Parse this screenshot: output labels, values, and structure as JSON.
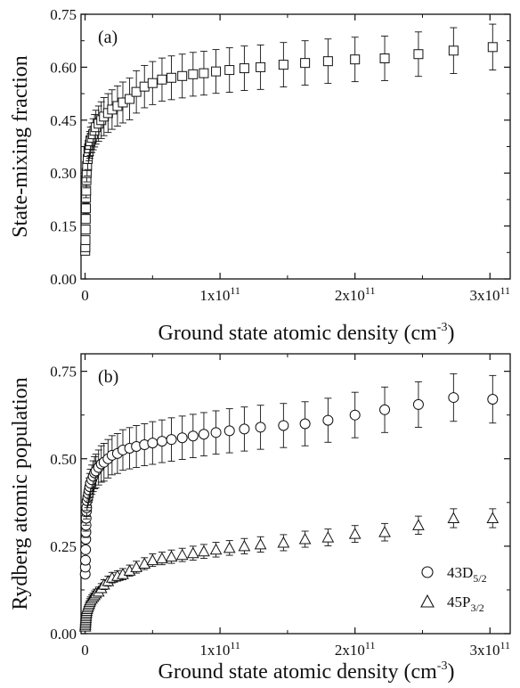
{
  "chart_data": [
    {
      "type": "scatter",
      "panel_label": "(a)",
      "xlabel": "Ground state atomic density (cm",
      "xlabel_sup": "-3",
      "xlabel_end": ")",
      "ylabel": "State-mixing fraction",
      "xlim": [
        -3000000000.0,
        315000000000.0
      ],
      "ylim": [
        0,
        0.75
      ],
      "x_ticks": [
        {
          "value": 0,
          "mantissa": "0",
          "sup": ""
        },
        {
          "value": 100000000000.0,
          "mantissa": "1x10",
          "sup": "11"
        },
        {
          "value": 200000000000.0,
          "mantissa": "2x10",
          "sup": "11"
        },
        {
          "value": 300000000000.0,
          "mantissa": "3x10",
          "sup": "11"
        }
      ],
      "y_ticks": [
        "0.00",
        "0.15",
        "0.30",
        "0.45",
        "0.60",
        "0.75"
      ],
      "grid": false,
      "series": [
        {
          "marker": "square",
          "x": [
            100000000.0,
            200000000.0,
            300000000.0,
            400000000.0,
            500000000.0,
            600000000.0,
            700000000.0,
            800000000.0,
            1000000000.0,
            1200000000.0,
            1500000000.0,
            2000000000.0,
            2500000000.0,
            3000000000.0,
            3500000000.0,
            4000000000.0,
            5000000000.0,
            6000000000.0,
            7000000000.0,
            8000000000.0,
            10000000000.0,
            12000000000.0,
            14000000000.0,
            17000000000.0,
            20000000000.0,
            24000000000.0,
            28000000000.0,
            33000000000.0,
            38000000000.0,
            44000000000.0,
            50000000000.0,
            57000000000.0,
            64000000000.0,
            72000000000.0,
            80000000000.0,
            88000000000.0,
            97000000000.0,
            107000000000.0,
            118000000000.0,
            130000000000.0,
            147000000000.0,
            163000000000.0,
            180000000000.0,
            200000000000.0,
            222000000000.0,
            247000000000.0,
            273000000000.0,
            302000000000.0
          ],
          "y": [
            0.08,
            0.09,
            0.11,
            0.14,
            0.17,
            0.2,
            0.23,
            0.25,
            0.28,
            0.3,
            0.32,
            0.34,
            0.36,
            0.37,
            0.38,
            0.39,
            0.4,
            0.41,
            0.42,
            0.43,
            0.44,
            0.45,
            0.46,
            0.47,
            0.48,
            0.49,
            0.5,
            0.51,
            0.53,
            0.545,
            0.555,
            0.565,
            0.57,
            0.575,
            0.58,
            0.583,
            0.588,
            0.592,
            0.597,
            0.6,
            0.607,
            0.612,
            0.617,
            0.622,
            0.625,
            0.637,
            0.647,
            0.657
          ],
          "err": [
            0.005,
            0.006,
            0.008,
            0.01,
            0.012,
            0.015,
            0.017,
            0.02,
            0.022,
            0.025,
            0.028,
            0.03,
            0.033,
            0.035,
            0.038,
            0.04,
            0.042,
            0.044,
            0.046,
            0.048,
            0.05,
            0.052,
            0.054,
            0.055,
            0.056,
            0.057,
            0.058,
            0.059,
            0.06,
            0.06,
            0.061,
            0.061,
            0.062,
            0.062,
            0.062,
            0.062,
            0.062,
            0.063,
            0.063,
            0.063,
            0.063,
            0.063,
            0.063,
            0.063,
            0.063,
            0.063,
            0.065,
            0.065
          ]
        }
      ]
    },
    {
      "type": "scatter",
      "panel_label": "(b)",
      "xlabel": "Ground state atomic density (cm",
      "xlabel_sup": "-3",
      "xlabel_end": ")",
      "ylabel": "Rydberg atomic population",
      "xlim": [
        -3000000000.0,
        315000000000.0
      ],
      "ylim": [
        0,
        0.8
      ],
      "x_ticks": [
        {
          "value": 0,
          "mantissa": "0",
          "sup": ""
        },
        {
          "value": 100000000000.0,
          "mantissa": "1x10",
          "sup": "11"
        },
        {
          "value": 200000000000.0,
          "mantissa": "2x10",
          "sup": "11"
        },
        {
          "value": 300000000000.0,
          "mantissa": "3x10",
          "sup": "11"
        }
      ],
      "y_ticks": [
        "0.00",
        "0.25",
        "0.50",
        "0.75"
      ],
      "grid": false,
      "legend_position": "bottom-right",
      "series": [
        {
          "name": "43D",
          "name_sub": "5/2",
          "marker": "circle",
          "x": [
            100000000.0,
            200000000.0,
            300000000.0,
            400000000.0,
            500000000.0,
            600000000.0,
            700000000.0,
            800000000.0,
            1000000000.0,
            1200000000.0,
            1500000000.0,
            2000000000.0,
            2500000000.0,
            3000000000.0,
            3500000000.0,
            4000000000.0,
            5000000000.0,
            6000000000.0,
            7000000000.0,
            8000000000.0,
            10000000000.0,
            12000000000.0,
            14000000000.0,
            17000000000.0,
            20000000000.0,
            24000000000.0,
            28000000000.0,
            33000000000.0,
            38000000000.0,
            44000000000.0,
            50000000000.0,
            57000000000.0,
            64000000000.0,
            72000000000.0,
            80000000000.0,
            88000000000.0,
            97000000000.0,
            107000000000.0,
            118000000000.0,
            130000000000.0,
            147000000000.0,
            163000000000.0,
            180000000000.0,
            200000000000.0,
            222000000000.0,
            247000000000.0,
            273000000000.0,
            302000000000.0
          ],
          "y": [
            0.17,
            0.19,
            0.21,
            0.24,
            0.27,
            0.29,
            0.31,
            0.33,
            0.35,
            0.36,
            0.38,
            0.39,
            0.4,
            0.41,
            0.42,
            0.43,
            0.44,
            0.45,
            0.46,
            0.465,
            0.475,
            0.485,
            0.49,
            0.5,
            0.51,
            0.515,
            0.525,
            0.53,
            0.535,
            0.54,
            0.545,
            0.55,
            0.555,
            0.56,
            0.565,
            0.57,
            0.575,
            0.58,
            0.585,
            0.59,
            0.595,
            0.6,
            0.61,
            0.625,
            0.64,
            0.655,
            0.675,
            0.67
          ],
          "err": [
            0.006,
            0.007,
            0.008,
            0.01,
            0.012,
            0.015,
            0.017,
            0.02,
            0.022,
            0.025,
            0.028,
            0.03,
            0.033,
            0.035,
            0.038,
            0.04,
            0.042,
            0.044,
            0.046,
            0.048,
            0.05,
            0.052,
            0.054,
            0.055,
            0.056,
            0.057,
            0.058,
            0.059,
            0.06,
            0.06,
            0.061,
            0.061,
            0.062,
            0.062,
            0.062,
            0.062,
            0.062,
            0.063,
            0.063,
            0.063,
            0.063,
            0.063,
            0.063,
            0.065,
            0.065,
            0.065,
            0.068,
            0.068
          ]
        },
        {
          "name": "45P",
          "name_sub": "3/2",
          "marker": "triangle",
          "x": [
            100000000.0,
            200000000.0,
            300000000.0,
            400000000.0,
            500000000.0,
            600000000.0,
            700000000.0,
            800000000.0,
            1000000000.0,
            1200000000.0,
            1500000000.0,
            2000000000.0,
            2500000000.0,
            3000000000.0,
            3500000000.0,
            4000000000.0,
            5000000000.0,
            6000000000.0,
            7000000000.0,
            8000000000.0,
            10000000000.0,
            12000000000.0,
            14000000000.0,
            17000000000.0,
            20000000000.0,
            24000000000.0,
            28000000000.0,
            33000000000.0,
            38000000000.0,
            44000000000.0,
            50000000000.0,
            57000000000.0,
            64000000000.0,
            72000000000.0,
            80000000000.0,
            88000000000.0,
            97000000000.0,
            107000000000.0,
            118000000000.0,
            130000000000.0,
            147000000000.0,
            163000000000.0,
            180000000000.0,
            200000000000.0,
            222000000000.0,
            247000000000.0,
            273000000000.0,
            302000000000.0
          ],
          "y": [
            0.02,
            0.025,
            0.03,
            0.035,
            0.04,
            0.045,
            0.05,
            0.055,
            0.06,
            0.065,
            0.07,
            0.075,
            0.08,
            0.085,
            0.09,
            0.095,
            0.1,
            0.105,
            0.11,
            0.115,
            0.12,
            0.13,
            0.14,
            0.15,
            0.16,
            0.165,
            0.17,
            0.18,
            0.19,
            0.2,
            0.21,
            0.215,
            0.22,
            0.225,
            0.23,
            0.235,
            0.24,
            0.245,
            0.25,
            0.255,
            0.26,
            0.27,
            0.275,
            0.285,
            0.29,
            0.31,
            0.33,
            0.33
          ],
          "err": [
            0.003,
            0.003,
            0.004,
            0.004,
            0.005,
            0.005,
            0.006,
            0.006,
            0.007,
            0.007,
            0.008,
            0.008,
            0.009,
            0.009,
            0.01,
            0.01,
            0.011,
            0.011,
            0.012,
            0.012,
            0.013,
            0.013,
            0.014,
            0.014,
            0.015,
            0.015,
            0.016,
            0.016,
            0.017,
            0.017,
            0.018,
            0.018,
            0.019,
            0.019,
            0.02,
            0.02,
            0.021,
            0.021,
            0.022,
            0.022,
            0.023,
            0.023,
            0.024,
            0.024,
            0.025,
            0.026,
            0.027,
            0.027
          ]
        }
      ]
    }
  ]
}
